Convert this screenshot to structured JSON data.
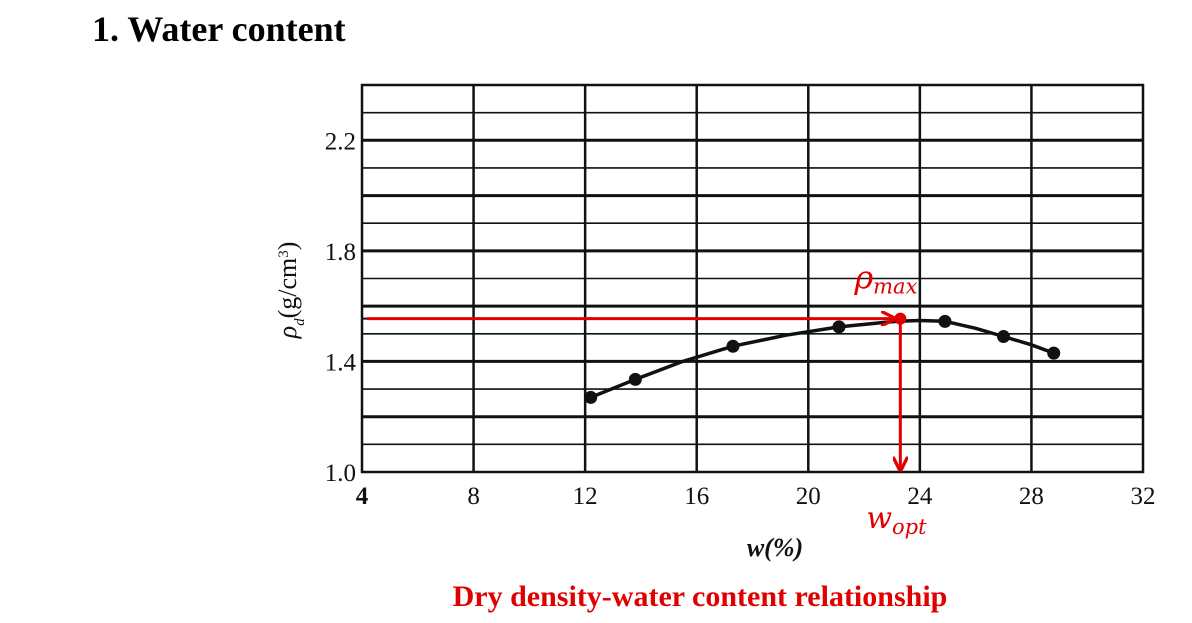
{
  "heading": "1.  Water content",
  "caption": "Dry density-water content relationship",
  "colors": {
    "annotation": "#e00000",
    "ink": "#000000",
    "grid": "#111111"
  },
  "chart_data": {
    "type": "line",
    "xlim": [
      4,
      32
    ],
    "ylim": [
      1.0,
      2.4
    ],
    "x_ticks": [
      "4",
      "8",
      "12",
      "16",
      "20",
      "24",
      "28",
      "32"
    ],
    "y_ticks": [
      "1.0",
      "1.4",
      "1.8",
      "2.2"
    ],
    "xlabel": "w(%)",
    "ylabel_main": "ρ",
    "ylabel_sub": "d",
    "ylabel_rest": "(g/cm",
    "ylabel_sup": "3",
    "ylabel_close": ")",
    "grid": true,
    "series": [
      {
        "x": [
          12.2,
          13.8,
          17.3,
          21.1,
          24.9,
          27.0,
          28.8
        ],
        "y": [
          1.27,
          1.335,
          1.455,
          1.525,
          1.545,
          1.49,
          1.43
        ]
      }
    ],
    "curve": {
      "x": [
        12.2,
        13.8,
        15.5,
        17.3,
        19.2,
        21.1,
        22.6,
        23.2,
        24.0,
        24.9,
        26.0,
        27.0,
        28.0,
        28.8
      ],
      "y": [
        1.27,
        1.335,
        1.4,
        1.455,
        1.495,
        1.525,
        1.54,
        1.545,
        1.548,
        1.545,
        1.52,
        1.49,
        1.46,
        1.43
      ]
    },
    "optimum": {
      "x": 23.3,
      "y": 1.555
    },
    "annotations": {
      "rho_main": "ρ",
      "rho_sub": "max",
      "w_main": "w",
      "w_sub": "opt"
    }
  }
}
